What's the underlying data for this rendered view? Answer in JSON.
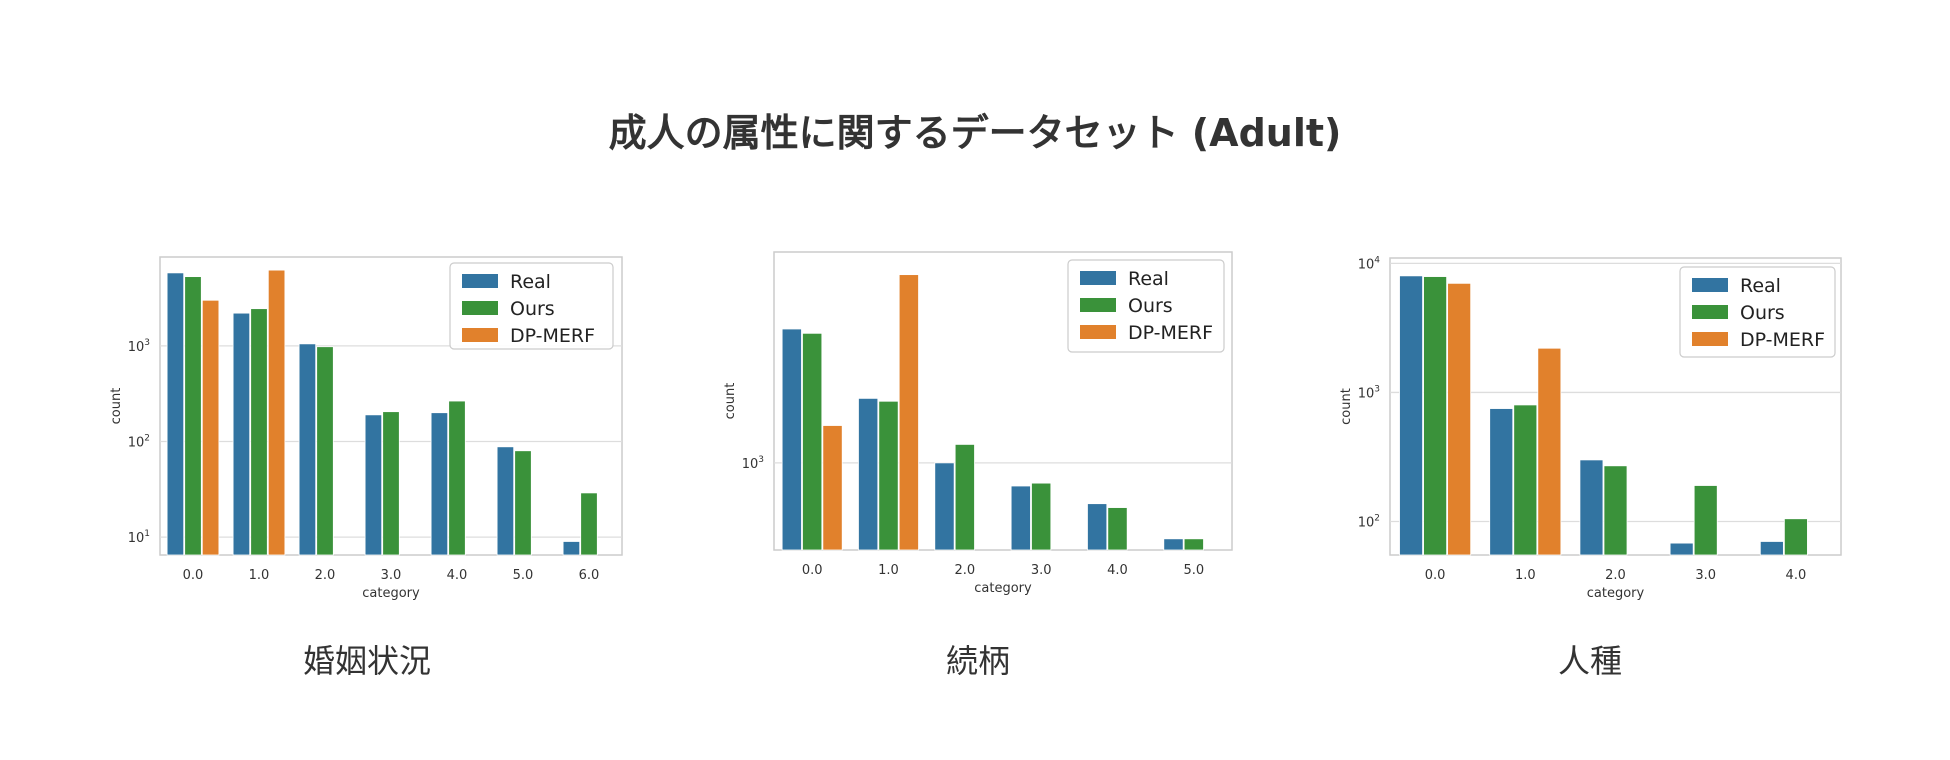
{
  "title": "成人の属性に関するデータセット (Adult)",
  "colors": {
    "Real": "#3274a1",
    "Ours": "#3a923a",
    "DP-MERF": "#e1812c"
  },
  "chart_data": [
    {
      "type": "bar",
      "caption": "婚姻状況",
      "xlabel": "category",
      "ylabel": "count",
      "yscale": "log",
      "ylim": [
        6.5,
        8500
      ],
      "yticks": [
        {
          "value": 10,
          "base": "10",
          "exp": "1"
        },
        {
          "value": 100,
          "base": "10",
          "exp": "2"
        },
        {
          "value": 1000,
          "base": "10",
          "exp": "3"
        }
      ],
      "categories": [
        "0.0",
        "1.0",
        "2.0",
        "3.0",
        "4.0",
        "5.0",
        "6.0"
      ],
      "series": [
        {
          "name": "Real",
          "values": [
            5800,
            2200,
            1050,
            190,
            200,
            88,
            9
          ]
        },
        {
          "name": "Ours",
          "values": [
            5300,
            2450,
            980,
            205,
            265,
            80,
            29
          ]
        },
        {
          "name": "DP-MERF",
          "values": [
            3000,
            6200,
            null,
            null,
            null,
            null,
            null
          ]
        }
      ],
      "legend_position": "top-right"
    },
    {
      "type": "bar",
      "caption": "続柄",
      "xlabel": "category",
      "ylabel": "count",
      "yscale": "log",
      "ylim": [
        290,
        20000
      ],
      "yticks": [
        {
          "value": 1000,
          "base": "10",
          "exp": "3"
        }
      ],
      "categories": [
        "0.0",
        "1.0",
        "2.0",
        "3.0",
        "4.0",
        "5.0"
      ],
      "series": [
        {
          "name": "Real",
          "values": [
            6700,
            2500,
            1000,
            720,
            560,
            340
          ]
        },
        {
          "name": "Ours",
          "values": [
            6300,
            2400,
            1300,
            750,
            530,
            340
          ]
        },
        {
          "name": "DP-MERF",
          "values": [
            1700,
            14500,
            null,
            null,
            null,
            null
          ]
        }
      ],
      "legend_position": "top-right"
    },
    {
      "type": "bar",
      "caption": "人種",
      "xlabel": "category",
      "ylabel": "count",
      "yscale": "log",
      "ylim": [
        55,
        11000
      ],
      "yticks": [
        {
          "value": 100,
          "base": "10",
          "exp": "2"
        },
        {
          "value": 1000,
          "base": "10",
          "exp": "3"
        },
        {
          "value": 10000,
          "base": "10",
          "exp": "4"
        }
      ],
      "categories": [
        "0.0",
        "1.0",
        "2.0",
        "3.0",
        "4.0"
      ],
      "series": [
        {
          "name": "Real",
          "values": [
            8000,
            750,
            300,
            68,
            70
          ]
        },
        {
          "name": "Ours",
          "values": [
            7900,
            800,
            270,
            190,
            105
          ]
        },
        {
          "name": "DP-MERF",
          "values": [
            7000,
            2200,
            null,
            null,
            null
          ]
        }
      ],
      "legend_position": "top-right"
    }
  ]
}
